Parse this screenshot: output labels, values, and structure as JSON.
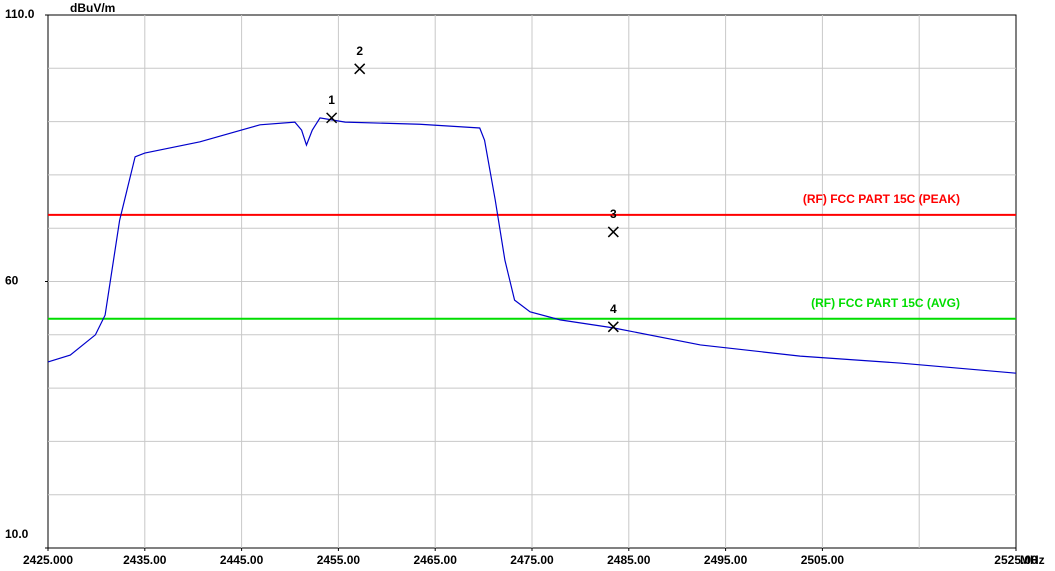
{
  "chart_data": {
    "type": "line",
    "y_unit": "dBuV/m",
    "x_unit": "MHz",
    "xlim": [
      2425,
      2525
    ],
    "ylim": [
      10,
      110
    ],
    "xticks": [
      {
        "value": 2425,
        "label": "2425.000"
      },
      {
        "value": 2435,
        "label": "2435.00"
      },
      {
        "value": 2445,
        "label": "2445.00"
      },
      {
        "value": 2455,
        "label": "2455.00"
      },
      {
        "value": 2465,
        "label": "2465.00"
      },
      {
        "value": 2475,
        "label": "2475.00"
      },
      {
        "value": 2485,
        "label": "2485.00"
      },
      {
        "value": 2495,
        "label": "2495.00"
      },
      {
        "value": 2505,
        "label": "2505.00"
      },
      {
        "value": 2525,
        "label": "2525.00"
      }
    ],
    "yticks": [
      {
        "value": 110,
        "label": "110.0"
      },
      60,
      {
        "value": 10,
        "label": "10.0"
      }
    ],
    "xgrid": [
      2435,
      2445,
      2455,
      2465,
      2475,
      2485,
      2495,
      2505,
      2515
    ],
    "ygrid": [
      20,
      30,
      40,
      50,
      60,
      70,
      80,
      90,
      100
    ],
    "grid": true,
    "series": [
      {
        "color": "#0000cc",
        "x": [
          2425,
          2427.3,
          2429.9,
          2430.9,
          2432.4,
          2434,
          2435,
          2440.7,
          2446.9,
          2450.5,
          2451.2,
          2451.7,
          2452.3,
          2453.1,
          2455.7,
          2463.4,
          2469.6,
          2470.1,
          2471.2,
          2472.2,
          2473.2,
          2474.8,
          2477.9,
          2483.4,
          2492.4,
          2502.7,
          2513,
          2525
        ],
        "values": [
          44.9,
          46.2,
          50,
          53.7,
          71.5,
          83.4,
          84.1,
          86.2,
          89.4,
          89.9,
          88.4,
          85.6,
          88.4,
          90.7,
          89.9,
          89.5,
          88.8,
          86.5,
          75.3,
          64,
          56.5,
          54.3,
          52.8,
          51.3,
          48.1,
          46,
          44.7,
          42.8
        ]
      }
    ],
    "limits": [
      {
        "name": "(RF) FCC PART 15C (PEAK)",
        "color": "#ff0000",
        "value": 72.5
      },
      {
        "name": "(RF) FCC PART 15C (AVG)",
        "color": "#00dd00",
        "value": 53
      }
    ],
    "markers": [
      {
        "name": "1",
        "x": 2454.3,
        "value": 90.7
      },
      {
        "name": "2",
        "x": 2457.2,
        "value": 99.9
      },
      {
        "name": "3",
        "x": 2483.4,
        "value": 69.3
      },
      {
        "name": "4",
        "x": 2483.4,
        "value": 51.5
      }
    ]
  }
}
